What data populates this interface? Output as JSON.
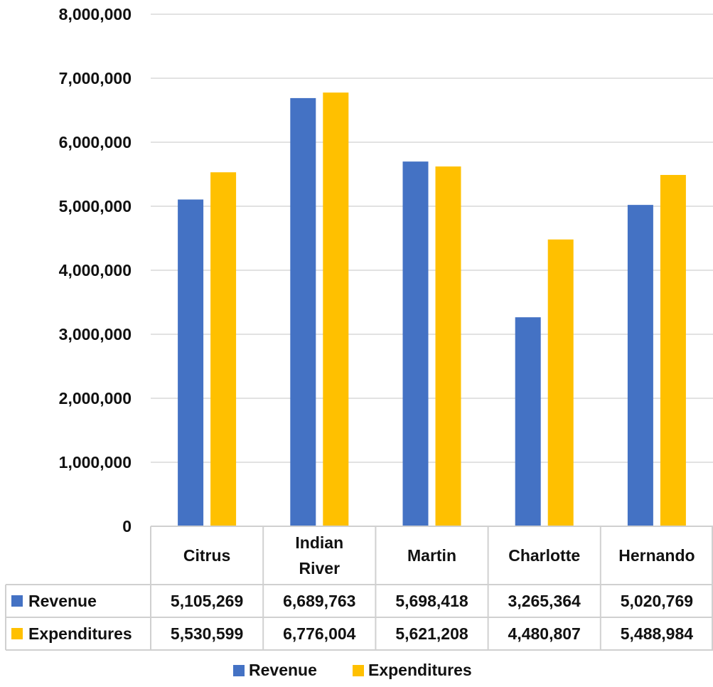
{
  "chart_data": {
    "type": "bar",
    "categories": [
      "Citrus",
      "Indian River",
      "Martin",
      "Charlotte",
      "Hernando"
    ],
    "category_display_lines": [
      [
        "Citrus"
      ],
      [
        "Indian",
        "River"
      ],
      [
        "Martin"
      ],
      [
        "Charlotte"
      ],
      [
        "Hernando"
      ]
    ],
    "series": [
      {
        "name": "Revenue",
        "color": "#4472C4",
        "values": [
          5105269,
          6689763,
          5698418,
          3265364,
          5020769
        ],
        "labels": [
          "5,105,269",
          "6,689,763",
          "5,698,418",
          "3,265,364",
          "5,020,769"
        ]
      },
      {
        "name": "Expenditures",
        "color": "#FFC000",
        "values": [
          5530599,
          6776004,
          5621208,
          4480807,
          5488984
        ],
        "labels": [
          "5,530,599",
          "6,776,004",
          "5,621,208",
          "4,480,807",
          "5,488,984"
        ]
      }
    ],
    "ylim": [
      0,
      8000000
    ],
    "y_ticks": [
      {
        "value": 0,
        "label": "0"
      },
      {
        "value": 1000000,
        "label": "1,000,000"
      },
      {
        "value": 2000000,
        "label": "2,000,000"
      },
      {
        "value": 3000000,
        "label": "3,000,000"
      },
      {
        "value": 4000000,
        "label": "4,000,000"
      },
      {
        "value": 5000000,
        "label": "5,000,000"
      },
      {
        "value": 6000000,
        "label": "6,000,000"
      },
      {
        "value": 7000000,
        "label": "7,000,000"
      },
      {
        "value": 8000000,
        "label": "8,000,000"
      }
    ],
    "grid": true,
    "data_table": true,
    "legend": {
      "position": "bottom",
      "entries": [
        "Revenue",
        "Expenditures"
      ]
    },
    "title": "",
    "xlabel": "",
    "ylabel": ""
  }
}
